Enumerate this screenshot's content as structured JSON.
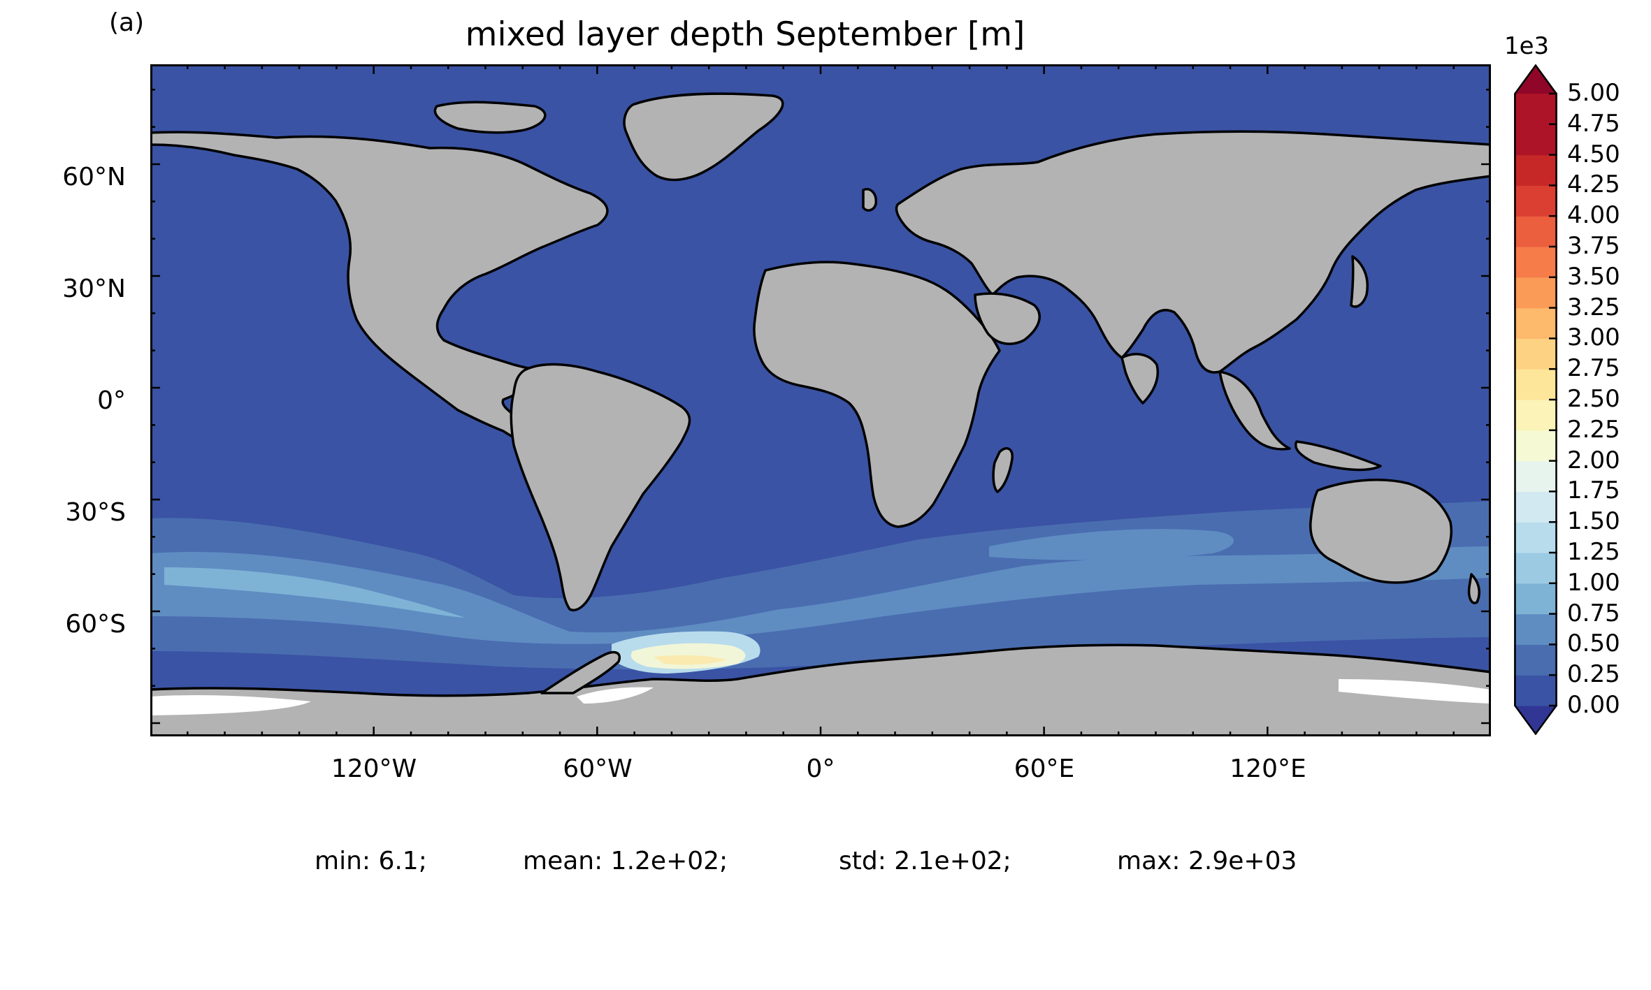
{
  "panel_label": "(a)",
  "title": "mixed layer depth September [m]",
  "colors": {
    "ocean": "#3a53a4",
    "land": "#b3b3b3",
    "ice": "#ffffff",
    "coast": "#000000",
    "colormap": "RdYlBu_r"
  },
  "axes": {
    "lat_ticks": [
      "60°N",
      "30°N",
      "0°",
      "30°S",
      "60°S"
    ],
    "lon_ticks": [
      "120°W",
      "60°W",
      "0°",
      "60°E",
      "120°E"
    ]
  },
  "colorbar": {
    "exponent_label": "1e3",
    "tick_labels": [
      "5.00",
      "4.75",
      "4.50",
      "4.25",
      "4.00",
      "3.75",
      "3.50",
      "3.25",
      "3.00",
      "2.75",
      "2.50",
      "2.25",
      "2.00",
      "1.75",
      "1.50",
      "1.25",
      "1.00",
      "0.75",
      "0.50",
      "0.25",
      "0.00"
    ],
    "extend": "both"
  },
  "stats": {
    "min": "min: 6.1;",
    "mean": "mean: 1.2e+02;",
    "std": "std: 2.1e+02;",
    "max": "max: 2.9e+03"
  }
}
